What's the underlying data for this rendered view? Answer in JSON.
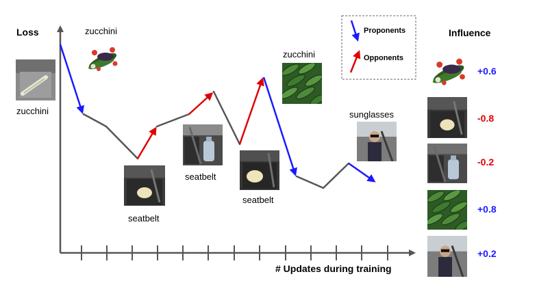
{
  "axes": {
    "y_label": "Loss",
    "x_label": "# Updates during training"
  },
  "legend": {
    "proponents": "Proponents",
    "opponents": "Opponents"
  },
  "influence": {
    "title": "Influence",
    "entries": [
      {
        "image": "zucchini-bundle",
        "value": "+0.6",
        "color": "#1a1aff"
      },
      {
        "image": "seatbelt-car-seat",
        "value": "-0.8",
        "color": "#e00000"
      },
      {
        "image": "seatbelt-bottle",
        "value": "-0.2",
        "color": "#e00000"
      },
      {
        "image": "zucchini-pile",
        "value": "+0.8",
        "color": "#1a1aff"
      },
      {
        "image": "sunglasses-driver",
        "value": "+0.2",
        "color": "#1a1aff"
      }
    ]
  },
  "labels": {
    "test_image": "zucchini",
    "zucchini_top": "zucchini",
    "zucchini_right": "zucchini",
    "seatbelt_1": "seatbelt",
    "seatbelt_2": "seatbelt",
    "seatbelt_3": "seatbelt",
    "sunglasses": "sunglasses"
  },
  "colors": {
    "proponent": "#1a1aff",
    "opponent": "#e00000",
    "curve": "#555555",
    "axis": "#555555"
  }
}
